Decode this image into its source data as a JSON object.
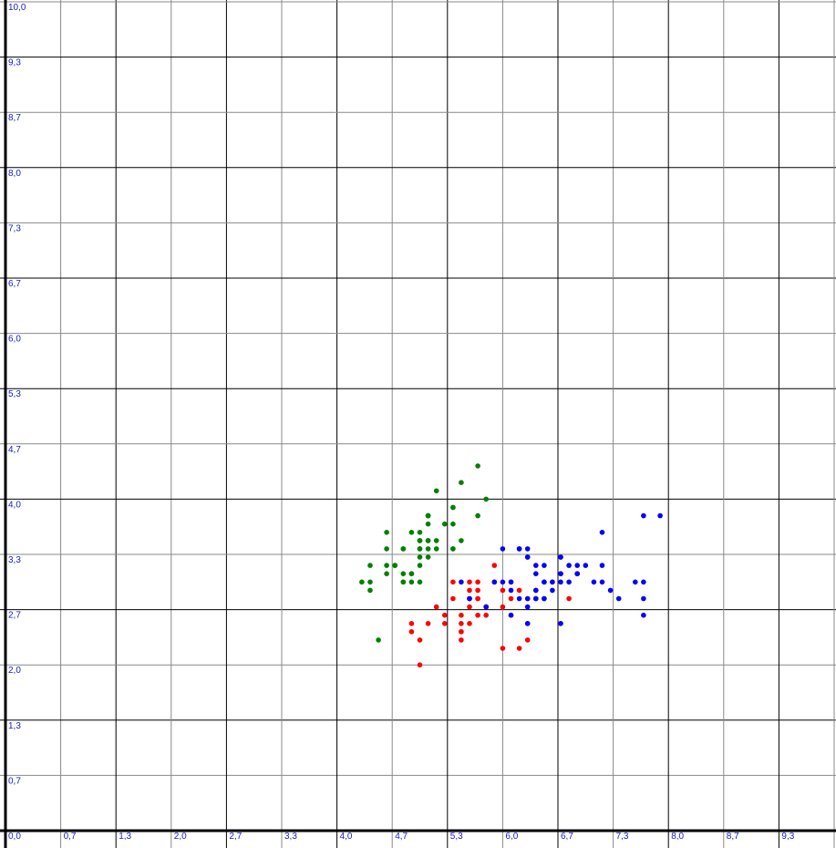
{
  "chart_data": {
    "type": "scatter",
    "title": "",
    "xlabel": "",
    "ylabel": "",
    "xlim": [
      0,
      10
    ],
    "ylim": [
      0,
      10
    ],
    "grid": true,
    "legend": "none",
    "x_ticks": [
      "0,0",
      "0,7",
      "1,3",
      "2,0",
      "2,7",
      "3,3",
      "4,0",
      "4,7",
      "5,3",
      "6,0",
      "6,7",
      "7,3",
      "8,0",
      "8,7",
      "9,3"
    ],
    "y_ticks": [
      "0,0",
      "0,7",
      "1,3",
      "2,0",
      "2,7",
      "3,3",
      "4,0",
      "4,7",
      "5,3",
      "6,0",
      "6,7",
      "7,3",
      "8,0",
      "8,7",
      "9,3",
      "10,0"
    ],
    "colors": {
      "grid_major": "#000000",
      "grid_minor": "#888888",
      "tick_text": "#1a1acc"
    },
    "series": [
      {
        "color": "#008000",
        "points": [
          [
            5.1,
            3.5
          ],
          [
            4.9,
            3.0
          ],
          [
            4.7,
            3.2
          ],
          [
            4.6,
            3.1
          ],
          [
            5.0,
            3.6
          ],
          [
            5.4,
            3.9
          ],
          [
            4.6,
            3.4
          ],
          [
            5.0,
            3.4
          ],
          [
            4.4,
            2.9
          ],
          [
            4.9,
            3.1
          ],
          [
            5.4,
            3.7
          ],
          [
            4.8,
            3.4
          ],
          [
            4.8,
            3.0
          ],
          [
            4.3,
            3.0
          ],
          [
            5.8,
            4.0
          ],
          [
            5.7,
            4.4
          ],
          [
            5.4,
            3.9
          ],
          [
            5.1,
            3.5
          ],
          [
            5.7,
            3.8
          ],
          [
            5.1,
            3.8
          ],
          [
            5.4,
            3.4
          ],
          [
            5.1,
            3.7
          ],
          [
            4.6,
            3.6
          ],
          [
            5.1,
            3.3
          ],
          [
            4.8,
            3.4
          ],
          [
            5.0,
            3.0
          ],
          [
            5.0,
            3.4
          ],
          [
            5.2,
            3.5
          ],
          [
            5.2,
            3.4
          ],
          [
            4.7,
            3.2
          ],
          [
            4.8,
            3.1
          ],
          [
            5.4,
            3.4
          ],
          [
            5.2,
            4.1
          ],
          [
            5.5,
            4.2
          ],
          [
            4.9,
            3.1
          ],
          [
            5.0,
            3.2
          ],
          [
            5.5,
            3.5
          ],
          [
            4.9,
            3.6
          ],
          [
            4.4,
            3.0
          ],
          [
            5.1,
            3.4
          ],
          [
            5.0,
            3.5
          ],
          [
            4.5,
            2.3
          ],
          [
            4.4,
            3.2
          ],
          [
            5.0,
            3.5
          ],
          [
            5.1,
            3.8
          ],
          [
            4.8,
            3.0
          ],
          [
            5.1,
            3.8
          ],
          [
            4.6,
            3.2
          ],
          [
            5.3,
            3.7
          ],
          [
            5.0,
            3.3
          ]
        ]
      },
      {
        "color": "#ff0000",
        "points": [
          [
            5.5,
            2.3
          ],
          [
            5.7,
            2.8
          ],
          [
            4.9,
            2.4
          ],
          [
            5.2,
            2.7
          ],
          [
            5.0,
            2.0
          ],
          [
            5.9,
            3.0
          ],
          [
            6.0,
            2.2
          ],
          [
            5.6,
            2.9
          ],
          [
            5.8,
            2.7
          ],
          [
            6.2,
            2.2
          ],
          [
            5.6,
            2.5
          ],
          [
            5.9,
            3.2
          ],
          [
            6.1,
            2.8
          ],
          [
            6.4,
            2.9
          ],
          [
            6.6,
            3.0
          ],
          [
            6.8,
            2.8
          ],
          [
            6.0,
            2.9
          ],
          [
            5.7,
            2.6
          ],
          [
            5.5,
            2.4
          ],
          [
            5.5,
            2.4
          ],
          [
            5.8,
            2.7
          ],
          [
            6.0,
            2.7
          ],
          [
            5.4,
            3.0
          ],
          [
            6.3,
            2.3
          ],
          [
            5.6,
            3.0
          ],
          [
            5.5,
            2.5
          ],
          [
            5.5,
            2.6
          ],
          [
            6.1,
            3.0
          ],
          [
            5.8,
            2.6
          ],
          [
            5.0,
            2.3
          ],
          [
            5.6,
            2.7
          ],
          [
            5.7,
            3.0
          ],
          [
            5.7,
            2.9
          ],
          [
            6.2,
            2.9
          ],
          [
            5.1,
            2.5
          ],
          [
            5.7,
            2.8
          ],
          [
            4.9,
            2.5
          ],
          [
            5.6,
            2.8
          ],
          [
            6.3,
            2.5
          ],
          [
            6.7,
            2.5
          ],
          [
            6.1,
            2.6
          ],
          [
            5.3,
            2.5
          ],
          [
            5.3,
            2.6
          ],
          [
            6.3,
            2.8
          ],
          [
            5.4,
            2.8
          ]
        ]
      },
      {
        "color": "#0000ff",
        "points": [
          [
            6.3,
            3.3
          ],
          [
            7.1,
            3.0
          ],
          [
            6.5,
            3.0
          ],
          [
            7.6,
            3.0
          ],
          [
            7.3,
            2.9
          ],
          [
            6.7,
            2.5
          ],
          [
            7.2,
            3.6
          ],
          [
            6.4,
            3.2
          ],
          [
            6.8,
            3.0
          ],
          [
            6.4,
            2.8
          ],
          [
            7.7,
            3.8
          ],
          [
            7.7,
            2.6
          ],
          [
            6.9,
            3.2
          ],
          [
            5.6,
            2.8
          ],
          [
            7.7,
            2.8
          ],
          [
            6.3,
            2.7
          ],
          [
            6.7,
            3.3
          ],
          [
            7.2,
            3.2
          ],
          [
            6.2,
            2.8
          ],
          [
            6.1,
            3.0
          ],
          [
            6.4,
            2.8
          ],
          [
            7.2,
            3.0
          ],
          [
            7.4,
            2.8
          ],
          [
            7.9,
            3.8
          ],
          [
            6.3,
            2.8
          ],
          [
            6.1,
            2.6
          ],
          [
            7.7,
            3.0
          ],
          [
            6.3,
            3.4
          ],
          [
            6.4,
            3.1
          ],
          [
            6.0,
            3.0
          ],
          [
            6.9,
            3.1
          ],
          [
            6.7,
            3.1
          ],
          [
            6.9,
            3.1
          ],
          [
            5.8,
            2.7
          ],
          [
            6.8,
            3.2
          ],
          [
            6.7,
            3.3
          ],
          [
            6.7,
            3.0
          ],
          [
            6.3,
            2.5
          ],
          [
            6.5,
            3.0
          ],
          [
            6.2,
            3.4
          ],
          [
            5.9,
            3.0
          ],
          [
            7.0,
            3.2
          ],
          [
            6.6,
            2.9
          ],
          [
            6.7,
            3.1
          ],
          [
            6.3,
            3.3
          ],
          [
            6.5,
            2.8
          ],
          [
            5.5,
            3.0
          ],
          [
            6.0,
            3.4
          ],
          [
            6.1,
            2.9
          ],
          [
            6.6,
            3.0
          ],
          [
            6.2,
            3.4
          ],
          [
            6.9,
            3.1
          ],
          [
            5.6,
            2.8
          ],
          [
            6.4,
            2.9
          ],
          [
            6.5,
            3.2
          ],
          [
            6.5,
            2.8
          ]
        ]
      }
    ]
  }
}
